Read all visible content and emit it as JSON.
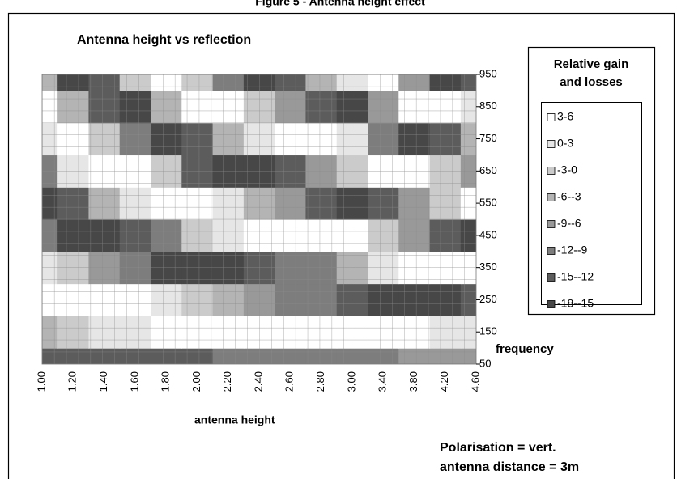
{
  "chart_data": {
    "type": "contour",
    "figure_title": "Figure 5 - Antenna height effect",
    "title": "Antenna height vs reflection",
    "x_label": "antenna height",
    "y_label": "frequency",
    "notes": [
      "Polarisation = vert.",
      "antenna distance = 3m"
    ],
    "legend_title": [
      "Relative gain",
      "and losses"
    ],
    "legend": "right",
    "grid": true,
    "categories": [
      "1.00",
      "1.20",
      "1.40",
      "1.60",
      "1.80",
      "2.00",
      "2.20",
      "2.40",
      "2.60",
      "2.80",
      "3.00",
      "3.40",
      "3.80",
      "4.20",
      "4.60"
    ],
    "y_categories": [
      50,
      150,
      250,
      350,
      450,
      550,
      650,
      750,
      850,
      950
    ],
    "levels": [
      6,
      3,
      0,
      -3,
      -6,
      -9,
      -12,
      -15,
      -18
    ],
    "series": [
      {
        "name": "3-6",
        "color": "#ffffff"
      },
      {
        "name": "0-3",
        "color": "#e6e6e6"
      },
      {
        "name": "-3-0",
        "color": "#cbcbcb"
      },
      {
        "name": "-6--3",
        "color": "#b4b4b4"
      },
      {
        "name": "-9--6",
        "color": "#999999"
      },
      {
        "name": "-12--9",
        "color": "#7d7d7d"
      },
      {
        "name": "-15--12",
        "color": "#5c5c5c"
      },
      {
        "name": "-18--15",
        "color": "#474747"
      }
    ],
    "z": [
      [
        -15,
        -15,
        -14,
        -14,
        -13,
        -13,
        -12,
        -12,
        -11,
        -11,
        -10,
        -10,
        -9,
        -8,
        -8
      ],
      [
        -4,
        -1,
        1,
        2,
        4,
        5,
        5,
        6,
        6,
        6,
        6,
        5,
        4,
        2,
        1
      ],
      [
        5,
        6,
        5,
        3,
        1,
        -3,
        -5,
        -8,
        -11,
        -12,
        -14,
        -16,
        -17,
        -16,
        -15
      ],
      [
        2,
        -3,
        -8,
        -12,
        -16,
        -17,
        -16,
        -15,
        -12,
        -10,
        -6,
        0,
        4,
        5,
        6
      ],
      [
        -11,
        -16,
        -17,
        -15,
        -10,
        -3,
        1,
        4,
        6,
        5,
        4,
        -3,
        -9,
        -14,
        -16
      ],
      [
        -17,
        -14,
        -6,
        1,
        5,
        5,
        1,
        -4,
        -9,
        -14,
        -16,
        -15,
        -9,
        -2,
        4
      ],
      [
        -11,
        0,
        5,
        4,
        -3,
        -13,
        -16,
        -16,
        -13,
        -7,
        -2,
        6,
        4,
        -3,
        -9
      ],
      [
        2,
        5,
        -1,
        -11,
        -17,
        -13,
        -5,
        2,
        5,
        5,
        2,
        -12,
        -17,
        -13,
        -6
      ],
      [
        5,
        -4,
        -15,
        -16,
        -6,
        5,
        5,
        -1,
        -7,
        -15,
        -17,
        -7,
        4,
        5,
        0
      ],
      [
        -4,
        -16,
        -13,
        -1,
        6,
        -3,
        -12,
        -17,
        -14,
        -6,
        2,
        3,
        -9,
        -17,
        -13
      ]
    ]
  }
}
